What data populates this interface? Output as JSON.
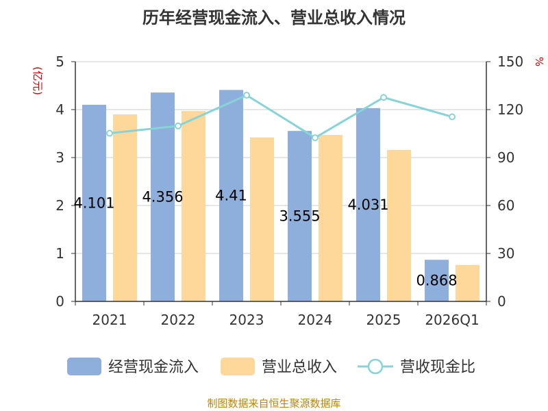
{
  "chart_data": {
    "type": "bar",
    "title": "历年经营现金流入、营业总收入情况",
    "categories": [
      "2021",
      "2022",
      "2023",
      "2024",
      "2025",
      "2026Q1"
    ],
    "y_left": {
      "unit": "(亿元)",
      "ylim": [
        0,
        5
      ],
      "ticks": [
        "0",
        "1",
        "2",
        "3",
        "4",
        "5"
      ]
    },
    "y_right": {
      "unit": "%",
      "ylim": [
        0,
        150
      ],
      "ticks": [
        "0",
        "30",
        "60",
        "90",
        "120",
        "150"
      ]
    },
    "series": [
      {
        "name": "经营现金流入",
        "type": "bar",
        "axis": "left",
        "color": "#8eaedb",
        "values": [
          4.101,
          4.356,
          4.41,
          3.555,
          4.031,
          0.868
        ],
        "labels": [
          "4.101",
          "4.356",
          "4.41",
          "3.555",
          "4.031",
          "0.868"
        ]
      },
      {
        "name": "营业总收入",
        "type": "bar",
        "axis": "left",
        "color": "#fdd89a",
        "values": [
          3.9,
          3.97,
          3.42,
          3.47,
          3.16,
          0.76
        ]
      },
      {
        "name": "营收现金比",
        "type": "line",
        "axis": "right",
        "color": "#86d4d8",
        "values": [
          105.2,
          109.8,
          129.0,
          102.4,
          127.6,
          115.5
        ]
      }
    ],
    "legend_position": "bottom",
    "grid": true,
    "source": "制图数据来自恒生聚源数据库"
  }
}
